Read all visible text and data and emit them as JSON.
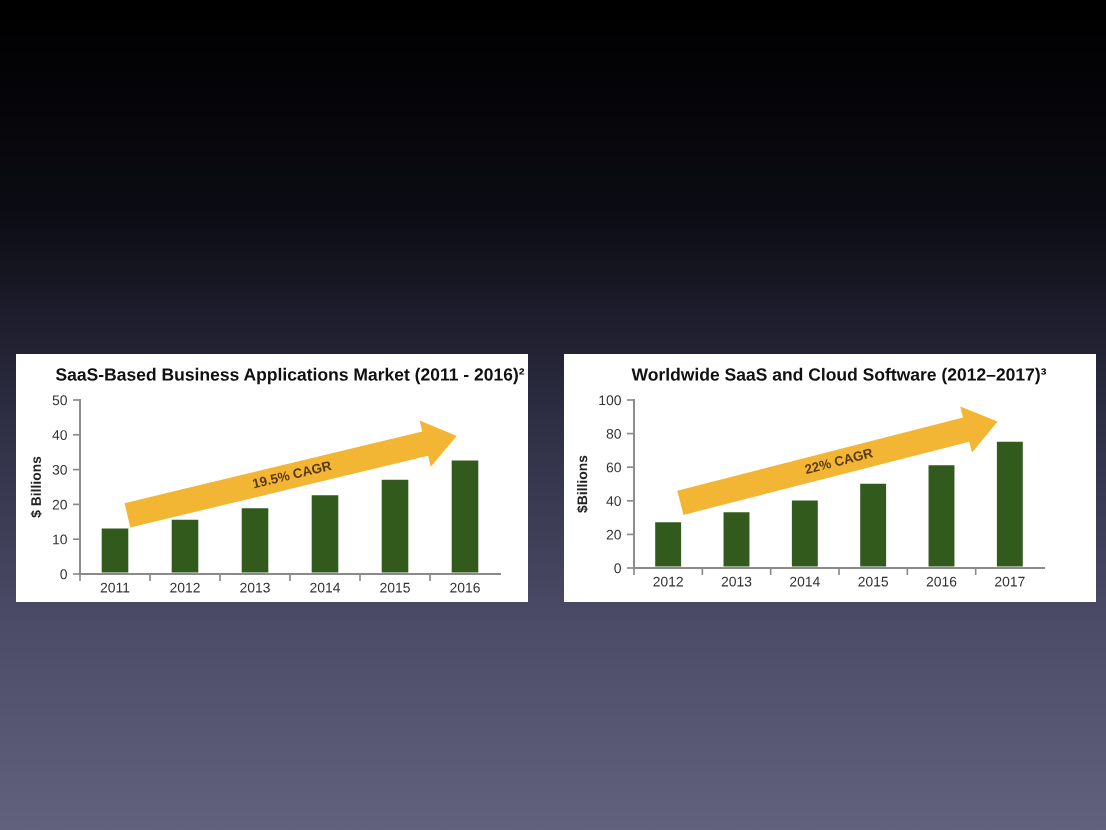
{
  "chart_data": [
    {
      "type": "bar",
      "title": "SaaS-Based Business Applications Market (2011 - 2016)²",
      "ylabel": "$ Billions",
      "categories": [
        "2011",
        "2012",
        "2013",
        "2014",
        "2015",
        "2016"
      ],
      "values": [
        13.5,
        16,
        19.3,
        23,
        27.5,
        33
      ],
      "color": "#325a1c",
      "ylim": [
        0,
        50
      ],
      "yticks": [
        0,
        10,
        20,
        30,
        40,
        50
      ],
      "annotations": [
        "19.5% CAGR"
      ]
    },
    {
      "type": "bar",
      "title": "Worldwide SaaS and Cloud Software (2012–2017)³",
      "ylabel": "$Billions",
      "categories": [
        "2012",
        "2013",
        "2014",
        "2015",
        "2016",
        "2017"
      ],
      "values": [
        28,
        34,
        41,
        51,
        62,
        76
      ],
      "color": "#325a1c",
      "ylim": [
        0,
        100
      ],
      "yticks": [
        0,
        20,
        40,
        60,
        80,
        100
      ],
      "annotations": [
        "22% CAGR"
      ]
    }
  ]
}
